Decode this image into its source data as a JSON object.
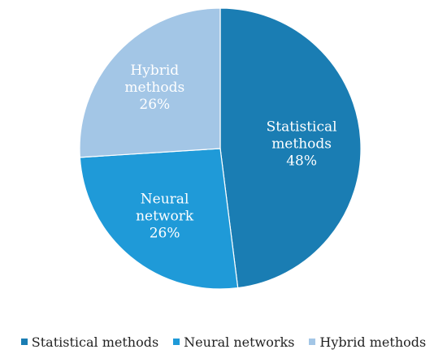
{
  "chart_data": {
    "type": "pie",
    "slices": [
      {
        "label": "Statistical methods",
        "value": 48,
        "color": "#1a7db3",
        "label_lines": [
          "Statistical",
          "methods",
          "48%"
        ]
      },
      {
        "label": "Neural networks",
        "value": 26,
        "color": "#1f9ad8",
        "label_lines": [
          "Neural",
          "network",
          "26%"
        ]
      },
      {
        "label": "Hybrid methods",
        "value": 26,
        "color": "#a3c6e6",
        "label_lines": [
          "Hybrid",
          "methods",
          "26%"
        ]
      }
    ],
    "legend_position": "bottom",
    "legend": [
      {
        "label": "Statistical methods",
        "color": "#1a7db3"
      },
      {
        "label": "Neural networks",
        "color": "#1f9ad8"
      },
      {
        "label": "Hybrid methods",
        "color": "#a3c6e6"
      }
    ]
  }
}
